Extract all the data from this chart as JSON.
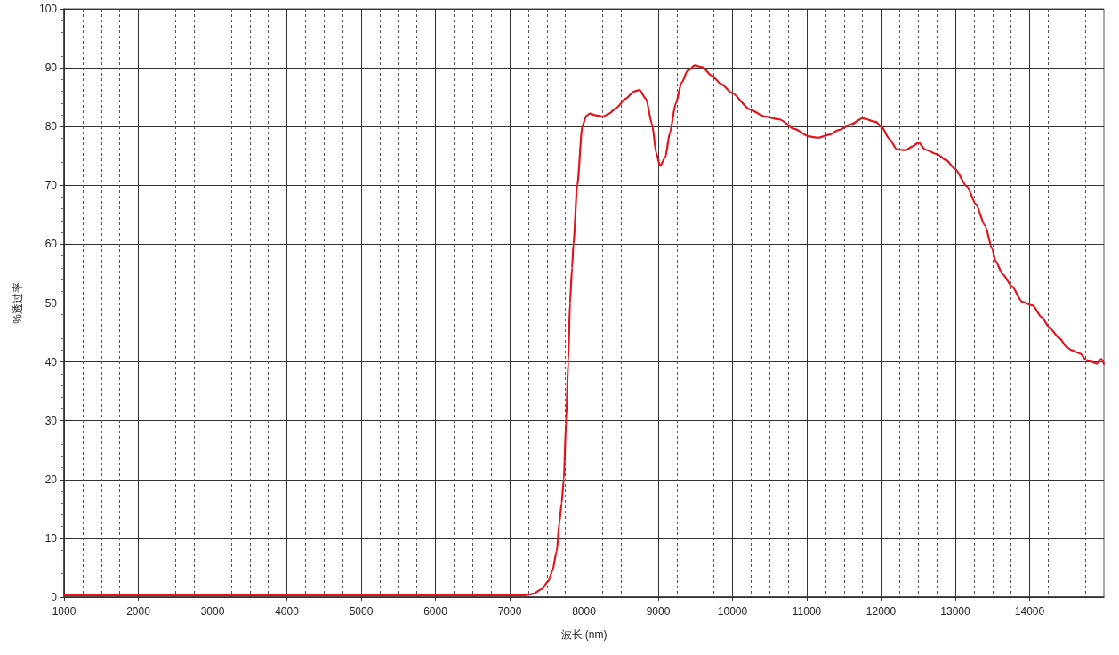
{
  "chart_data": {
    "type": "line",
    "xlabel": "波长 (nm)",
    "ylabel": "%透过率",
    "x": [
      1000,
      2000,
      3000,
      4000,
      5000,
      6000,
      7000,
      7209,
      7322,
      7435,
      7520,
      7576,
      7633,
      7672,
      7700,
      7728,
      7760,
      7788,
      7812,
      7840,
      7858,
      7910,
      7978,
      8030,
      8078,
      8160,
      8257,
      8340,
      8437,
      8557,
      8680,
      8748,
      8836,
      8916,
      8976,
      9024,
      9096,
      9156,
      9236,
      9316,
      9396,
      9496,
      9595,
      9715,
      9850,
      9994,
      10234,
      10433,
      10633,
      10832,
      11032,
      11152,
      11300,
      11431,
      11600,
      11751,
      11930,
      12010,
      12112,
      12213,
      12333,
      12420,
      12506,
      12594,
      12755,
      12876,
      12996,
      13157,
      13277,
      13398,
      13498,
      13538,
      13639,
      13759,
      13900,
      14040,
      14161,
      14281,
      14402,
      14502,
      14562,
      14683,
      14763,
      14843,
      14904,
      14964,
      15000
    ],
    "series": [
      {
        "color": "#e3141b",
        "values": [
          0.3,
          0.3,
          0.3,
          0.3,
          0.3,
          0.3,
          0.3,
          0.3,
          0.6,
          1.4,
          2.7,
          4.5,
          7.8,
          12.9,
          16.0,
          20.0,
          30.0,
          40.0,
          50.0,
          56.0,
          60.0,
          70.0,
          80.0,
          81.8,
          82.2,
          81.9,
          81.7,
          82.2,
          83.2,
          84.7,
          86.0,
          86.2,
          84.7,
          80.4,
          75.4,
          73.3,
          74.8,
          78.9,
          83.9,
          87.5,
          89.5,
          90.4,
          90.1,
          88.7,
          87.2,
          85.7,
          82.9,
          81.7,
          81.2,
          79.6,
          78.3,
          78.1,
          78.6,
          79.4,
          80.4,
          81.4,
          80.8,
          79.9,
          77.9,
          76.1,
          76.0,
          76.6,
          77.3,
          76.1,
          75.3,
          74.3,
          72.8,
          69.8,
          66.8,
          63.2,
          59.2,
          57.2,
          54.9,
          52.9,
          50.2,
          49.6,
          47.6,
          45.6,
          44.0,
          42.5,
          42.0,
          41.4,
          40.3,
          40.0,
          39.7,
          40.5,
          39.7
        ]
      }
    ],
    "xlim": [
      1000,
      15000
    ],
    "xticks": [
      1000,
      2000,
      3000,
      4000,
      5000,
      6000,
      7000,
      8000,
      9000,
      10000,
      11000,
      12000,
      13000,
      14000
    ],
    "ylim": [
      0,
      100
    ],
    "yticks": [
      0,
      10,
      20,
      30,
      40,
      50,
      60,
      70,
      80,
      90,
      100
    ],
    "grid": true,
    "marker": "none",
    "line_style": "solid"
  }
}
